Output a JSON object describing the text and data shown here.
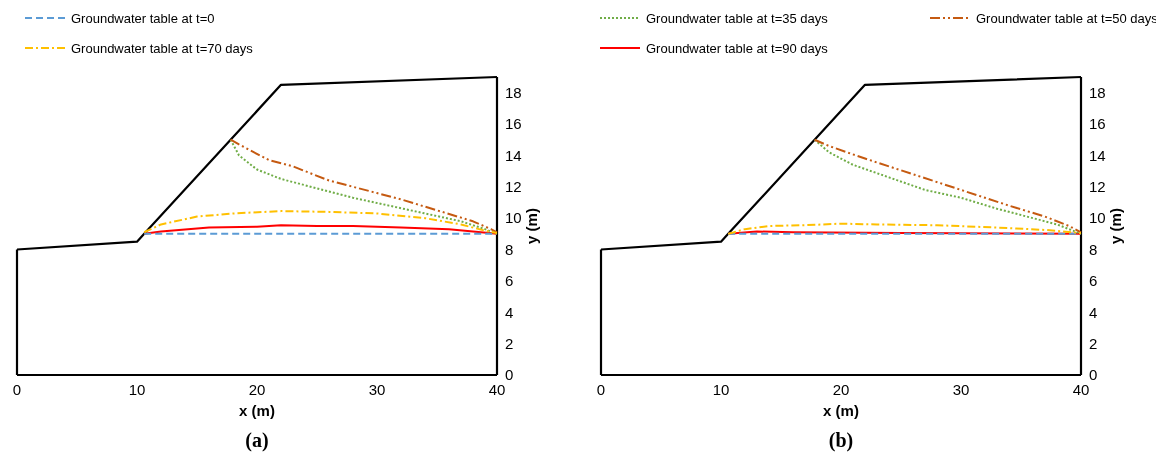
{
  "chart_data": [
    {
      "type": "line",
      "title": "(a)",
      "xlabel": "x (m)",
      "ylabel": "y (m)",
      "xlim": [
        0,
        40
      ],
      "ylim": [
        0,
        19
      ],
      "xticks": [
        0,
        10,
        20,
        30,
        40
      ],
      "yticks": [
        0,
        2,
        4,
        6,
        8,
        10,
        12,
        14,
        16,
        18
      ],
      "grid": false,
      "legend": "top",
      "series": [
        {
          "color": "#000000",
          "line_style": "solid",
          "x": [
            0,
            10,
            10.6,
            17.8,
            22,
            40
          ],
          "values": [
            8,
            8.5,
            9,
            15,
            18.5,
            19
          ]
        },
        {
          "name": "Groundwater table at t=0",
          "color": "#5b9bd5",
          "line_style": "dashed",
          "x": [
            10.6,
            40
          ],
          "values": [
            9,
            9
          ]
        },
        {
          "name": "Groundwater table at t=35 days",
          "color": "#70ad47",
          "line_style": "dotted",
          "x": [
            17.8,
            18.5,
            20,
            22,
            25,
            28,
            31,
            34,
            37,
            39,
            40
          ],
          "values": [
            15,
            14,
            13.1,
            12.5,
            11.9,
            11.3,
            10.8,
            10.3,
            9.8,
            9.3,
            9
          ]
        },
        {
          "name": "Groundwater table at t=50 days",
          "color": "#c55a11",
          "line_style": "dashdotdot",
          "x": [
            17.8,
            18.5,
            21,
            23,
            26,
            30,
            32,
            35,
            38,
            39.5,
            40
          ],
          "values": [
            15,
            14.7,
            13.7,
            13.3,
            12.4,
            11.6,
            11.2,
            10.5,
            9.8,
            9.3,
            9.1
          ]
        },
        {
          "name": "Groundwater table at t=70 days",
          "color": "#ffc000",
          "line_style": "dashdot",
          "x": [
            10.6,
            12,
            15,
            18,
            22,
            26,
            30,
            34,
            37,
            39,
            40
          ],
          "values": [
            9.1,
            9.6,
            10.1,
            10.3,
            10.45,
            10.4,
            10.3,
            10,
            9.6,
            9.2,
            9.05
          ]
        },
        {
          "name": "Groundwater table at t=90 days",
          "color": "#ff0000",
          "line_style": "solid",
          "x": [
            10.6,
            12,
            16,
            20,
            22,
            25,
            28,
            32,
            36,
            38,
            40
          ],
          "values": [
            9,
            9.15,
            9.4,
            9.45,
            9.55,
            9.5,
            9.5,
            9.4,
            9.3,
            9.15,
            9
          ]
        }
      ]
    },
    {
      "type": "line",
      "title": "(b)",
      "xlabel": "x (m)",
      "ylabel": "y (m)",
      "xlim": [
        0,
        40
      ],
      "ylim": [
        0,
        19
      ],
      "xticks": [
        0,
        10,
        20,
        30,
        40
      ],
      "yticks": [
        0,
        2,
        4,
        6,
        8,
        10,
        12,
        14,
        16,
        18
      ],
      "grid": false,
      "legend": false,
      "series": [
        {
          "color": "#000000",
          "line_style": "solid",
          "x": [
            0,
            10,
            10.6,
            17.8,
            22,
            40
          ],
          "values": [
            8,
            8.5,
            9,
            15,
            18.5,
            19
          ]
        },
        {
          "color": "#5b9bd5",
          "line_style": "dashed",
          "x": [
            10.6,
            40
          ],
          "values": [
            9,
            9
          ]
        },
        {
          "color": "#70ad47",
          "line_style": "dotted",
          "x": [
            17.8,
            19,
            21,
            24,
            27,
            30,
            33,
            36,
            38,
            40
          ],
          "values": [
            15,
            14.2,
            13.4,
            12.6,
            11.8,
            11.3,
            10.6,
            10,
            9.6,
            9
          ]
        },
        {
          "color": "#c55a11",
          "line_style": "dashdotdot",
          "x": [
            17.8,
            19,
            22,
            26,
            30,
            34,
            37,
            39,
            40
          ],
          "values": [
            15,
            14.6,
            13.8,
            12.8,
            11.8,
            10.8,
            10.1,
            9.5,
            9.1
          ]
        },
        {
          "color": "#ffc000",
          "line_style": "dashdot",
          "x": [
            10.6,
            12,
            14,
            17,
            20,
            23,
            28,
            33,
            37,
            40
          ],
          "values": [
            9,
            9.3,
            9.5,
            9.55,
            9.65,
            9.6,
            9.55,
            9.4,
            9.25,
            9.05
          ]
        },
        {
          "color": "#ff0000",
          "line_style": "solid",
          "x": [
            10.6,
            13,
            16,
            25,
            40
          ],
          "values": [
            9,
            9.15,
            9.1,
            9.05,
            9
          ]
        }
      ]
    }
  ]
}
